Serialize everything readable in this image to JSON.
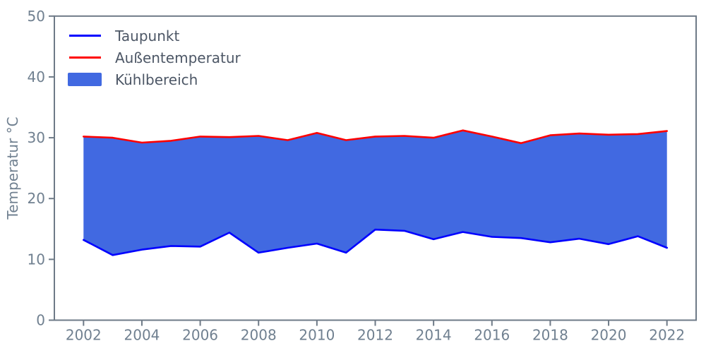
{
  "chart_data": {
    "type": "area",
    "title": "",
    "xlabel": "",
    "ylabel": "Temperatur °C",
    "x": [
      2002,
      2003,
      2004,
      2005,
      2006,
      2007,
      2008,
      2009,
      2010,
      2011,
      2012,
      2013,
      2014,
      2015,
      2016,
      2017,
      2018,
      2019,
      2020,
      2021,
      2022
    ],
    "series": [
      {
        "name": "Taupunkt",
        "color": "#0000ff",
        "style": "line",
        "values": [
          13.2,
          10.7,
          11.6,
          12.2,
          12.1,
          14.4,
          11.1,
          11.9,
          12.6,
          11.1,
          14.9,
          14.7,
          13.3,
          14.5,
          13.7,
          13.5,
          12.8,
          13.4,
          12.5,
          13.8,
          11.9
        ]
      },
      {
        "name": "Außentemperatur",
        "color": "#ff0000",
        "style": "line",
        "values": [
          30.2,
          30.0,
          29.2,
          29.5,
          30.2,
          30.1,
          30.3,
          29.6,
          30.8,
          29.6,
          30.2,
          30.3,
          30.0,
          31.2,
          30.2,
          29.1,
          30.4,
          30.7,
          30.5,
          30.6,
          31.1
        ]
      }
    ],
    "fill_between": {
      "name": "Kühlbereich",
      "color": "#4169e1",
      "lower_series": "Taupunkt",
      "upper_series": "Außentemperatur"
    },
    "legend": [
      {
        "label": "Taupunkt",
        "swatch": "line",
        "color": "#0000ff"
      },
      {
        "label": "Außentemperatur",
        "swatch": "line",
        "color": "#ff0000"
      },
      {
        "label": "Kühlbereich",
        "swatch": "patch",
        "color": "#4169e1"
      }
    ],
    "legend_position": "upper left",
    "grid": false,
    "xlim": [
      2001,
      2023
    ],
    "ylim": [
      0,
      50
    ],
    "xticks": [
      2002,
      2004,
      2006,
      2008,
      2010,
      2012,
      2014,
      2016,
      2018,
      2020,
      2022
    ],
    "yticks": [
      0,
      10,
      20,
      30,
      40,
      50
    ],
    "colors": {
      "axis": "#6e7a87",
      "tick_labels": "#708090",
      "legend_text": "#4d5766",
      "background": "#ffffff"
    }
  }
}
